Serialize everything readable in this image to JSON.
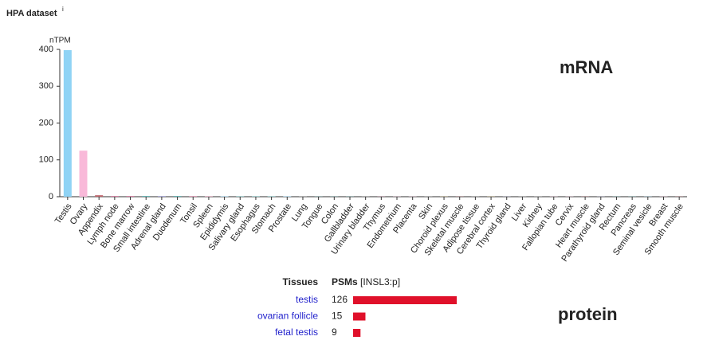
{
  "chart_data": {
    "type": "bar",
    "title": "HPA dataset",
    "title_info": "i",
    "ylabel": "nTPM",
    "categories": [
      "Testis",
      "Ovary",
      "Appendix",
      "Lymph node",
      "Bone marrow",
      "Small intestine",
      "Adrenal gland",
      "Duodenum",
      "Tonsil",
      "Spleen",
      "Epididymis",
      "Salivary gland",
      "Esophagus",
      "Stomach",
      "Prostate",
      "Lung",
      "Tongue",
      "Colon",
      "Gallbladder",
      "Urinary bladder",
      "Thymus",
      "Endometrium",
      "Placenta",
      "Skin",
      "Choroid plexus",
      "Skeletal muscle",
      "Adipose tissue",
      "Cerebral cortex",
      "Thyroid gland",
      "Liver",
      "Kidney",
      "Fallopian tube",
      "Cervix",
      "Heart muscle",
      "Parathyroid gland",
      "Rectum",
      "Pancreas",
      "Seminal vesicle",
      "Breast",
      "Smooth muscle"
    ],
    "values": [
      398,
      125,
      4,
      2,
      2,
      2,
      2,
      2,
      1.5,
      1,
      1,
      1,
      1,
      1,
      1,
      0.5,
      0.5,
      0.5,
      0.5,
      0.5,
      0.5,
      0.5,
      0.5,
      0.5,
      0.5,
      0.5,
      0.5,
      0.5,
      0.5,
      0.5,
      0.5,
      0.5,
      0.5,
      0.5,
      0.5,
      0.5,
      0.5,
      0.5,
      0.5,
      0.5
    ],
    "colors": [
      "#8fd3f5",
      "#f9b9d9",
      "#c0686e",
      "#d57c9f",
      "#d57c9f",
      "#5fb3b3",
      "#a9a9d8",
      "#5fb3b3",
      "#d57c9f",
      "#d57c9f",
      "#8fd3f5",
      "#5fb3b3",
      "#5fb3b3",
      "#5fb3b3",
      "#8fd3f5",
      "#b0b0b0",
      "#5fb3b3",
      "#5fb3b3",
      "#5fb3b3",
      "#b0b0b0",
      "#d57c9f",
      "#f9b9d9",
      "#f9b9d9",
      "#b0b0b0",
      "#e0c070",
      "#c0686e",
      "#b0b0b0",
      "#e0c070",
      "#a9a9d8",
      "#b0b0b0",
      "#b0b0b0",
      "#f9b9d9",
      "#f9b9d9",
      "#c0686e",
      "#a9a9d8",
      "#5fb3b3",
      "#5fb3b3",
      "#8fd3f5",
      "#f9b9d9",
      "#c0686e"
    ],
    "ylim": [
      0,
      400
    ],
    "yticks": [
      0,
      100,
      200,
      300,
      400
    ],
    "annotation": "mRNA"
  },
  "protein": {
    "annotation": "protein",
    "header_tissues": "Tissues",
    "header_psms": "PSMs",
    "header_gene": "[INSL3:p]",
    "color": "#e0102a",
    "rows": [
      {
        "tissue": "testis",
        "psms": 126
      },
      {
        "tissue": "ovarian follicle",
        "psms": 15
      },
      {
        "tissue": "fetal testis",
        "psms": 9
      }
    ]
  }
}
